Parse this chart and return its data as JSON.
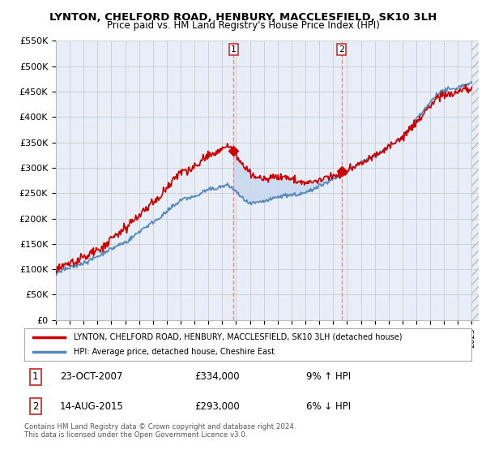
{
  "title": "LYNTON, CHELFORD ROAD, HENBURY, MACCLESFIELD, SK10 3LH",
  "subtitle": "Price paid vs. HM Land Registry's House Price Index (HPI)",
  "legend_line1": "LYNTON, CHELFORD ROAD, HENBURY, MACCLESFIELD, SK10 3LH (detached house)",
  "legend_line2": "HPI: Average price, detached house, Cheshire East",
  "footnote1": "Contains HM Land Registry data © Crown copyright and database right 2024.",
  "footnote2": "This data is licensed under the Open Government Licence v3.0.",
  "sale1_year": 2007.81,
  "sale2_year": 2015.62,
  "sale1_price": 334000,
  "sale2_price": 293000,
  "ylim_min": 0,
  "ylim_max": 550000,
  "yticks": [
    0,
    50000,
    100000,
    150000,
    200000,
    250000,
    300000,
    350000,
    400000,
    450000,
    500000,
    550000
  ],
  "ytick_labels": [
    "£0",
    "£50K",
    "£100K",
    "£150K",
    "£200K",
    "£250K",
    "£300K",
    "£350K",
    "£400K",
    "£450K",
    "£500K",
    "£550K"
  ],
  "bg_color": "#e8eef8",
  "red_color": "#cc0000",
  "blue_color": "#5588bb",
  "fill_color": "#c8d8ee",
  "grid_color": "#cccccc",
  "dashed_color": "#ee8888",
  "box_edge_color": "#cc3333",
  "start_year": 1995,
  "end_year": 2025
}
